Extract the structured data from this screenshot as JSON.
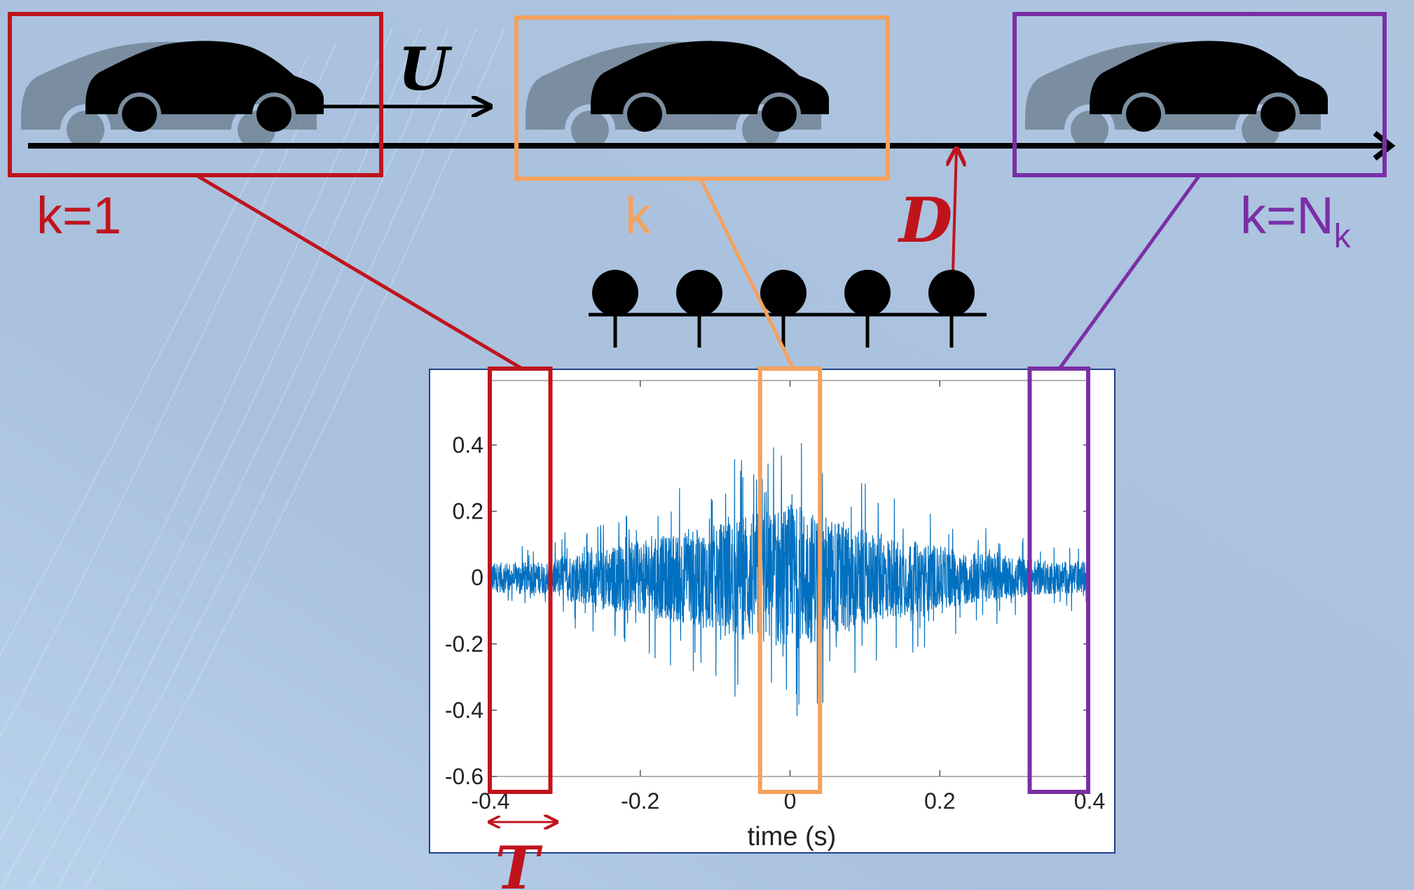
{
  "labels": {
    "k_first": "k=1",
    "k_mid": "k",
    "k_last_prefix": "k=N",
    "k_last_sub": "k",
    "speed": "U",
    "distance": "D",
    "window": "T"
  },
  "colors": {
    "first": "#c0141d",
    "mid": "#f5a15c",
    "last": "#7a2fa5",
    "signal": "#0070c0",
    "background": "#a9c1de",
    "ghost_car": "#6b7c8c"
  },
  "microphone_count": 5,
  "chart_data": {
    "type": "line",
    "xlabel": "time (s)",
    "ylabel": "",
    "xlim": [
      -0.4,
      0.4
    ],
    "ylim": [
      -0.6,
      0.6
    ],
    "x_ticks": [
      "-0.4",
      "-0.2",
      "0",
      "0.2",
      "0.4"
    ],
    "y_ticks": [
      "0.4",
      "0.2",
      "0",
      "-0.2",
      "-0.4",
      "-0.6"
    ],
    "envelope": {
      "t": [
        -0.4,
        -0.32,
        -0.3,
        -0.2,
        -0.1,
        -0.05,
        0,
        0.05,
        0.1,
        0.2,
        0.3,
        0.35,
        0.4
      ],
      "amplitude": [
        0.08,
        0.09,
        0.13,
        0.2,
        0.29,
        0.36,
        0.4,
        0.34,
        0.26,
        0.17,
        0.11,
        0.09,
        0.09
      ]
    },
    "windows": [
      {
        "k": "k=1",
        "t_start": -0.4,
        "t_end": -0.32
      },
      {
        "k": "k",
        "t_start": -0.04,
        "t_end": 0.04
      },
      {
        "k": "k=N_k",
        "t_start": 0.32,
        "t_end": 0.4
      }
    ]
  }
}
